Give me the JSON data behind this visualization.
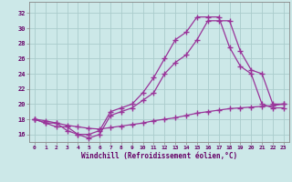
{
  "bg_color": "#cce8e8",
  "grid_color": "#aacccc",
  "line_color": "#993399",
  "xlabel": "Windchill (Refroidissement éolien,°C)",
  "xlabel_color": "#660066",
  "xticks": [
    0,
    1,
    2,
    3,
    4,
    5,
    6,
    7,
    8,
    9,
    10,
    11,
    12,
    13,
    14,
    15,
    16,
    17,
    18,
    19,
    20,
    21,
    22,
    23
  ],
  "ytick_vals": [
    16,
    18,
    20,
    22,
    24,
    26,
    28,
    30,
    32
  ],
  "xlim": [
    -0.5,
    23.5
  ],
  "ylim": [
    15.0,
    33.5
  ],
  "curve1_x": [
    0,
    1,
    2,
    3,
    4,
    5,
    6,
    7,
    8,
    9,
    10,
    11,
    12,
    13,
    14,
    15,
    16,
    17,
    18,
    19,
    20,
    21,
    22,
    23
  ],
  "curve1_y": [
    18,
    17.5,
    17,
    17,
    16,
    16,
    16.5,
    19,
    19.5,
    20,
    21.5,
    23.5,
    26,
    28.5,
    29.5,
    31.5,
    31.5,
    31.5,
    27.5,
    25,
    24,
    20,
    19.5,
    19.5
  ],
  "curve2_x": [
    0,
    1,
    2,
    3,
    4,
    5,
    6,
    7,
    8,
    9,
    10,
    11,
    12,
    13,
    14,
    15,
    16,
    17,
    18,
    19,
    20,
    21,
    22,
    23
  ],
  "curve2_y": [
    18,
    17.5,
    17.5,
    16.5,
    16,
    15.5,
    16,
    18.5,
    19,
    19.5,
    20.5,
    21.5,
    24.0,
    25.5,
    26.5,
    28.5,
    31,
    31,
    31,
    27,
    24.5,
    24,
    20,
    20
  ],
  "curve3_x": [
    0,
    1,
    2,
    3,
    4,
    5,
    6,
    7,
    8,
    9,
    10,
    11,
    12,
    13,
    14,
    15,
    16,
    17,
    18,
    19,
    20,
    21,
    22,
    23
  ],
  "curve3_y": [
    18,
    17.8,
    17.5,
    17.2,
    17.0,
    16.8,
    16.7,
    16.9,
    17.1,
    17.3,
    17.5,
    17.8,
    18.0,
    18.2,
    18.5,
    18.8,
    19.0,
    19.2,
    19.4,
    19.5,
    19.6,
    19.7,
    19.8,
    20.0
  ],
  "figsize": [
    3.2,
    2.0
  ],
  "dpi": 100
}
